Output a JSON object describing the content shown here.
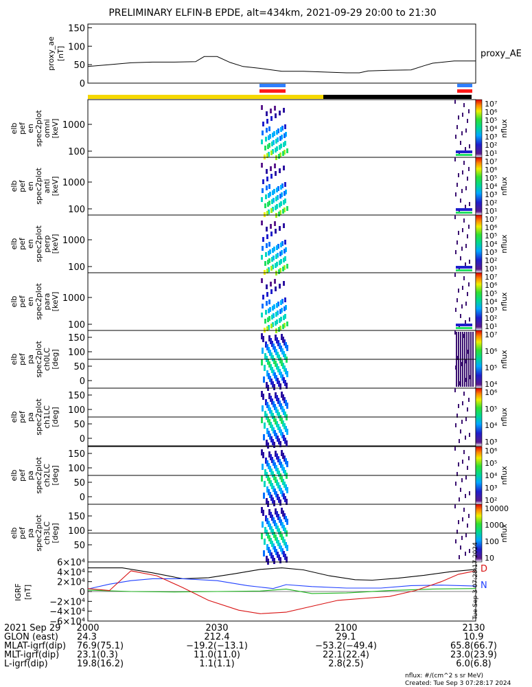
{
  "title": "PRELIMINARY ELFIN-B EPDE, alt=434km, 2021-09-29 20:00 to 21:30",
  "proxy_ae": {
    "ylabel": [
      "proxy_ae",
      "[nT]"
    ],
    "right_label": "proxy_AE",
    "ticks": [
      "0",
      "50",
      "100",
      "150"
    ],
    "ylim": [
      0,
      160
    ]
  },
  "chart_data": {
    "type": "line",
    "title": "PRELIMINARY ELFIN-B EPDE, alt=434km, 2021-09-29 20:00 to 21:30",
    "x_range_minutes": [
      0,
      90
    ],
    "proxy_ae_series": {
      "name": "proxy_AE",
      "x": [
        0,
        5,
        10,
        15,
        20,
        25,
        27,
        30,
        33,
        36,
        40,
        45,
        50,
        55,
        60,
        63,
        65,
        70,
        75,
        78,
        80,
        85,
        90
      ],
      "values": [
        45,
        50,
        55,
        57,
        57,
        58,
        72,
        72,
        56,
        45,
        40,
        32,
        32,
        30,
        28,
        28,
        33,
        35,
        36,
        47,
        54,
        60,
        60
      ]
    },
    "grf_series": {
      "ylim": [
        -60000,
        60000
      ],
      "ticks": [
        "6×10⁴",
        "4×10⁴",
        "2×10⁴",
        "0",
        "−2×10⁴",
        "−4×10⁴",
        "−6×10⁴"
      ],
      "tick_values": [
        60000,
        40000,
        20000,
        0,
        -20000,
        -40000,
        -60000
      ],
      "series": [
        {
          "name": "black",
          "x": [
            0,
            8,
            15,
            22,
            28,
            34,
            40,
            45,
            50,
            56,
            62,
            66,
            72,
            78,
            84,
            90
          ],
          "values": [
            48000,
            48000,
            38000,
            26000,
            28000,
            36000,
            45000,
            48000,
            44000,
            32000,
            24000,
            23000,
            27000,
            33000,
            40000,
            45000
          ]
        },
        {
          "name": "blue",
          "x": [
            0,
            5,
            10,
            15,
            22,
            30,
            37,
            43,
            46,
            52,
            60,
            68,
            75,
            82,
            90
          ],
          "values": [
            5000,
            15000,
            22000,
            26000,
            26000,
            22000,
            12000,
            6000,
            14000,
            10000,
            7000,
            7000,
            12000,
            13000,
            11000
          ]
        },
        {
          "name": "green",
          "x": [
            0,
            10,
            20,
            30,
            40,
            46,
            52,
            60,
            70,
            80,
            90
          ],
          "values": [
            3000,
            0,
            -1000,
            0,
            1000,
            5000,
            -4000,
            -3000,
            2000,
            5000,
            6000
          ]
        },
        {
          "name": "red",
          "x": [
            0,
            5,
            10,
            16,
            22,
            28,
            35,
            40,
            46,
            52,
            58,
            64,
            70,
            76,
            82,
            86,
            90
          ],
          "values": [
            6000,
            2000,
            42000,
            32000,
            8000,
            -18000,
            -38000,
            -45000,
            -42000,
            -30000,
            -18000,
            -14000,
            -10000,
            2000,
            20000,
            35000,
            42000
          ]
        }
      ]
    },
    "spectrograms": [
      {
        "ylabel": [
          "elb",
          "pef",
          "en",
          "spec2plot",
          "omni",
          "[keV]"
        ],
        "ticks": [
          "1000",
          "100"
        ],
        "cbar_ticks": [
          "10⁷",
          "10⁶",
          "10⁵",
          "10⁴",
          "10³",
          "10²",
          "10¹"
        ],
        "cbar_label": "nflux"
      },
      {
        "ylabel": [
          "elb",
          "pef",
          "en",
          "spec2plot",
          "anti",
          "[keV]"
        ],
        "ticks": [
          "1000",
          "100"
        ],
        "cbar_ticks": [
          "10⁷",
          "10⁶",
          "10⁵",
          "10⁴",
          "10³",
          "10²",
          "10¹"
        ],
        "cbar_label": "nflux"
      },
      {
        "ylabel": [
          "elb",
          "pef",
          "en",
          "spec2plot",
          "perp",
          "[keV]"
        ],
        "ticks": [
          "1000",
          "100"
        ],
        "cbar_ticks": [
          "10⁷",
          "10⁶",
          "10⁵",
          "10⁴",
          "10³",
          "10²",
          "10¹"
        ],
        "cbar_label": "nflux"
      },
      {
        "ylabel": [
          "elb",
          "pef",
          "en",
          "spec2plot",
          "para",
          "[keV]"
        ],
        "ticks": [
          "1000",
          "100"
        ],
        "cbar_ticks": [
          "10⁷",
          "10⁶",
          "10⁵",
          "10⁴",
          "10³",
          "10²",
          "10¹"
        ],
        "cbar_label": "nflux"
      },
      {
        "ylabel": [
          "elb",
          "pef",
          "pa",
          "spec2plot",
          "ch0LC",
          "[deg]"
        ],
        "ticks": [
          "150",
          "100",
          "50",
          "0"
        ],
        "cbar_ticks": [
          "10⁷",
          "10⁶",
          "10⁵",
          "10⁴"
        ],
        "cbar_label": "nflux"
      },
      {
        "ylabel": [
          "elb",
          "pef",
          "pa",
          "spec2plot",
          "ch1LC",
          "[deg]"
        ],
        "ticks": [
          "150",
          "100",
          "50",
          "0"
        ],
        "cbar_ticks": [
          "10⁶",
          "10⁵",
          "10⁴",
          "10³"
        ],
        "cbar_label": "nflux"
      },
      {
        "ylabel": [
          "elb",
          "pef",
          "pa",
          "spec2plot",
          "ch2LC",
          "[deg]"
        ],
        "ticks": [
          "150",
          "100",
          "50",
          "0"
        ],
        "cbar_ticks": [
          "10⁶",
          "10⁵",
          "10⁴",
          "10³",
          "10²"
        ],
        "cbar_label": "nflux"
      },
      {
        "ylabel": [
          "elb",
          "pef",
          "pa",
          "spec2plot",
          "ch3LC",
          "[deg]"
        ],
        "ticks": [
          "150",
          "100",
          "50"
        ],
        "cbar_ticks": [
          "10000",
          "1000",
          "100",
          "10"
        ],
        "cbar_label": "nflux"
      }
    ]
  },
  "grf_panel": {
    "ylabel": [
      "IGRF",
      "[nT]"
    ],
    "right_labels": [
      "D",
      "N"
    ],
    "side_caption": "Tue Sep 3 07:28:17 2024"
  },
  "footer": {
    "date_label": "2021 Sep 29",
    "times": [
      "2000",
      "2030",
      "2100",
      "2130"
    ],
    "rows": [
      {
        "label": "GLON (east)",
        "values": [
          "24.3",
          "212.4",
          "29.1",
          "10.9"
        ]
      },
      {
        "label": "MLAT-igrf(dip)",
        "values": [
          "76.9(75.1)",
          "−19.2(−13.1)",
          "−53.2(−49.4)",
          "65.8(66.7)"
        ]
      },
      {
        "label": "MLT-igrf(dip)",
        "values": [
          "23.1(0.3)",
          "11.0(11.0)",
          "22.1(22.4)",
          "23.0(23.9)"
        ]
      },
      {
        "label": "L-igrf(dip)",
        "values": [
          "19.8(16.2)",
          "1.1(1.1)",
          "2.8(2.5)",
          "6.0(6.8)"
        ]
      }
    ],
    "units_note": "nflux: #/(cm^2 s sr MeV)",
    "created": "Created: Tue Sep  3 07:28:17 2024"
  },
  "colors": {
    "science_zone_bar_a": "#f5d800",
    "science_zone_bar_b": "#000000",
    "ion_bar": "#2f7fff",
    "electron_bar": "#ff1a1a",
    "igrf_black": "#000000",
    "igrf_blue": "#1f3fff",
    "igrf_green": "#19b419",
    "igrf_red": "#d81010"
  }
}
